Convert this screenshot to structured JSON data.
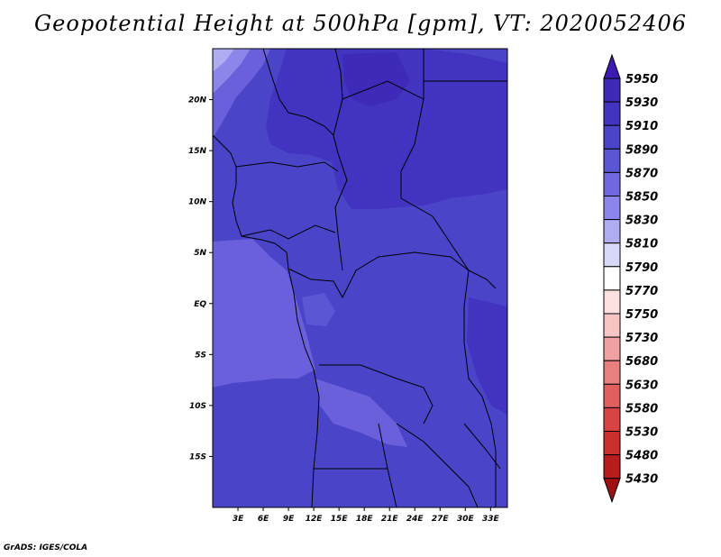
{
  "title": "Geopotential Height at 500hPa [gpm], VT: 2020052406",
  "credit": "GrADS: IGES/COLA",
  "map": {
    "type": "filled-contour",
    "lon_range": [
      0,
      35
    ],
    "lat_range": [
      -20,
      25
    ],
    "x_ticks": [
      "3E",
      "6E",
      "9E",
      "12E",
      "15E",
      "18E",
      "21E",
      "24E",
      "27E",
      "30E",
      "33E"
    ],
    "x_tick_values": [
      3,
      6,
      9,
      12,
      15,
      18,
      21,
      24,
      27,
      30,
      33
    ],
    "y_ticks": [
      "20N",
      "15N",
      "10N",
      "5N",
      "EQ",
      "5S",
      "10S",
      "15S"
    ],
    "y_tick_values": [
      20,
      15,
      10,
      5,
      0,
      -5,
      -10,
      -15
    ]
  },
  "colorbar": {
    "levels": [
      5950,
      5930,
      5910,
      5890,
      5870,
      5850,
      5830,
      5810,
      5790,
      5770,
      5750,
      5730,
      5680,
      5630,
      5580,
      5530,
      5480,
      5430
    ],
    "colors": [
      "#3c1cb0",
      "#3e2ab8",
      "#4234c0",
      "#4a44c8",
      "#5a56d4",
      "#7068e0",
      "#8c86ea",
      "#b0acf2",
      "#d8d8f8",
      "#ffffff",
      "#fde0e0",
      "#f8c4c4",
      "#f0a2a2",
      "#e88080",
      "#e06060",
      "#d84444",
      "#cc2e2e",
      "#b81c1c",
      "#a01010"
    ]
  }
}
